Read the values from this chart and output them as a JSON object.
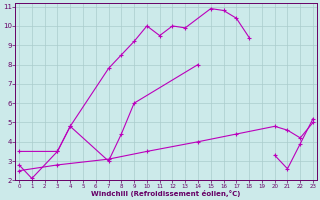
{
  "xlabel": "Windchill (Refroidissement éolien,°C)",
  "bg_color": "#cceaea",
  "grid_color": "#aacccc",
  "line_color": "#bb00bb",
  "series": [
    {
      "x": [
        0,
        1,
        3,
        4,
        7,
        8,
        9,
        10,
        11,
        12,
        13,
        15,
        16,
        17,
        18
      ],
      "y": [
        2.8,
        2.1,
        3.5,
        4.8,
        7.8,
        8.5,
        9.2,
        10.0,
        9.5,
        10.0,
        9.9,
        10.9,
        10.8,
        10.4,
        9.4
      ]
    },
    {
      "x": [
        0,
        3,
        4,
        7,
        8,
        9,
        14
      ],
      "y": [
        3.5,
        3.5,
        4.8,
        3.0,
        4.4,
        6.0,
        8.0
      ]
    },
    {
      "x": [
        20,
        21,
        22,
        23
      ],
      "y": [
        3.3,
        2.6,
        3.9,
        5.2
      ]
    },
    {
      "x": [
        0,
        3,
        7,
        10,
        14,
        17,
        20,
        21,
        22,
        23
      ],
      "y": [
        2.5,
        2.8,
        3.1,
        3.5,
        4.0,
        4.4,
        4.8,
        4.6,
        4.2,
        5.0
      ]
    }
  ],
  "xlim": [
    0,
    23
  ],
  "ylim": [
    2.0,
    11.2
  ],
  "xticks": [
    0,
    1,
    2,
    3,
    4,
    5,
    6,
    7,
    8,
    9,
    10,
    11,
    12,
    13,
    14,
    15,
    16,
    17,
    18,
    19,
    20,
    21,
    22,
    23
  ],
  "yticks": [
    2,
    3,
    4,
    5,
    6,
    7,
    8,
    9,
    10,
    11
  ]
}
